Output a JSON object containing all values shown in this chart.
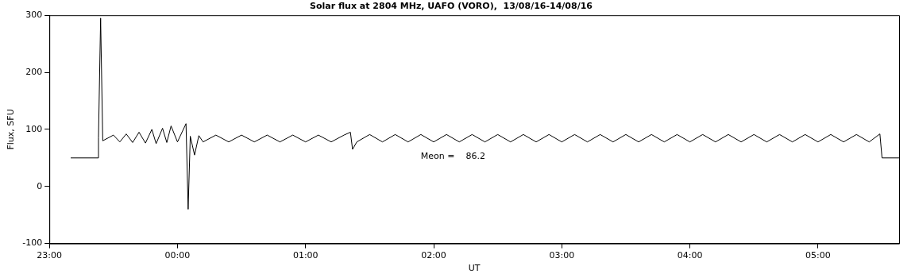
{
  "chart_data": {
    "type": "line",
    "title": "Solar flux at 2804 MHz, UAFO (VORO),  13/08/16-14/08/16",
    "xlabel": "UT",
    "ylabel": "Flux, SFU",
    "annotations": [
      "Meon =    86.2"
    ],
    "xlim": [
      "--08-13T23:00",
      "--08-14T05:38"
    ],
    "ylim": [
      -100,
      300
    ],
    "xticks": [
      {
        "value": "--08-13T23:00",
        "label": "23:00"
      },
      {
        "value": "--08-14T00:00",
        "label": "00:00"
      },
      {
        "value": "--08-14T01:00",
        "label": "01:00"
      },
      {
        "value": "--08-14T02:00",
        "label": "02:00"
      },
      {
        "value": "--08-14T03:00",
        "label": "03:00"
      },
      {
        "value": "--08-14T04:00",
        "label": "04:00"
      },
      {
        "value": "--08-14T05:00",
        "label": "05:00"
      }
    ],
    "yticks": [
      -100,
      0,
      100,
      200,
      300
    ],
    "grid": false,
    "legend": false,
    "marker": "none",
    "line_style": "solid",
    "series": [
      {
        "color": "#000000",
        "x": [
          "--08-13T23:10",
          "--08-13T23:23",
          "--08-13T23:23",
          "--08-13T23:24",
          "--08-13T23:25",
          "--08-13T23:30",
          "--08-13T23:33",
          "--08-13T23:36",
          "--08-13T23:39",
          "--08-13T23:42",
          "--08-13T23:45",
          "--08-13T23:48",
          "--08-13T23:50",
          "--08-13T23:53",
          "--08-13T23:55",
          "--08-13T23:57",
          "--08-14T00:00",
          "--08-14T00:04",
          "--08-14T00:05",
          "--08-14T00:06",
          "--08-14T00:08",
          "--08-14T00:10",
          "--08-14T00:12",
          "--08-14T00:18",
          "--08-14T00:24",
          "--08-14T00:30",
          "--08-14T00:36",
          "--08-14T00:42",
          "--08-14T00:48",
          "--08-14T00:54",
          "--08-14T01:00",
          "--08-14T01:06",
          "--08-14T01:12",
          "--08-14T01:18",
          "--08-14T01:21",
          "--08-14T01:22",
          "--08-14T01:24",
          "--08-14T01:30",
          "--08-14T01:36",
          "--08-14T01:42",
          "--08-14T01:48",
          "--08-14T01:54",
          "--08-14T02:00",
          "--08-14T02:06",
          "--08-14T02:12",
          "--08-14T02:18",
          "--08-14T02:24",
          "--08-14T02:30",
          "--08-14T02:36",
          "--08-14T02:42",
          "--08-14T02:48",
          "--08-14T02:54",
          "--08-14T03:00",
          "--08-14T03:06",
          "--08-14T03:12",
          "--08-14T03:18",
          "--08-14T03:24",
          "--08-14T03:30",
          "--08-14T03:36",
          "--08-14T03:42",
          "--08-14T03:48",
          "--08-14T03:54",
          "--08-14T04:00",
          "--08-14T04:06",
          "--08-14T04:12",
          "--08-14T04:18",
          "--08-14T04:24",
          "--08-14T04:30",
          "--08-14T04:36",
          "--08-14T04:42",
          "--08-14T04:48",
          "--08-14T04:54",
          "--08-14T05:00",
          "--08-14T05:06",
          "--08-14T05:12",
          "--08-14T05:18",
          "--08-14T05:24",
          "--08-14T05:29",
          "--08-14T05:30",
          "--08-14T05:38"
        ],
        "values": [
          50,
          50,
          85,
          295,
          80,
          90,
          78,
          92,
          77,
          95,
          76,
          100,
          75,
          102,
          77,
          106,
          78,
          110,
          -40,
          88,
          55,
          89,
          78,
          90,
          78,
          90,
          78,
          90,
          78,
          90,
          78,
          90,
          78,
          90,
          95,
          65,
          78,
          91,
          78,
          91,
          78,
          91,
          78,
          91,
          78,
          91,
          78,
          91,
          78,
          91,
          78,
          91,
          78,
          91,
          78,
          91,
          78,
          91,
          78,
          91,
          78,
          91,
          78,
          91,
          78,
          91,
          78,
          91,
          78,
          91,
          78,
          91,
          78,
          91,
          78,
          91,
          78,
          92,
          50,
          50
        ]
      }
    ]
  }
}
